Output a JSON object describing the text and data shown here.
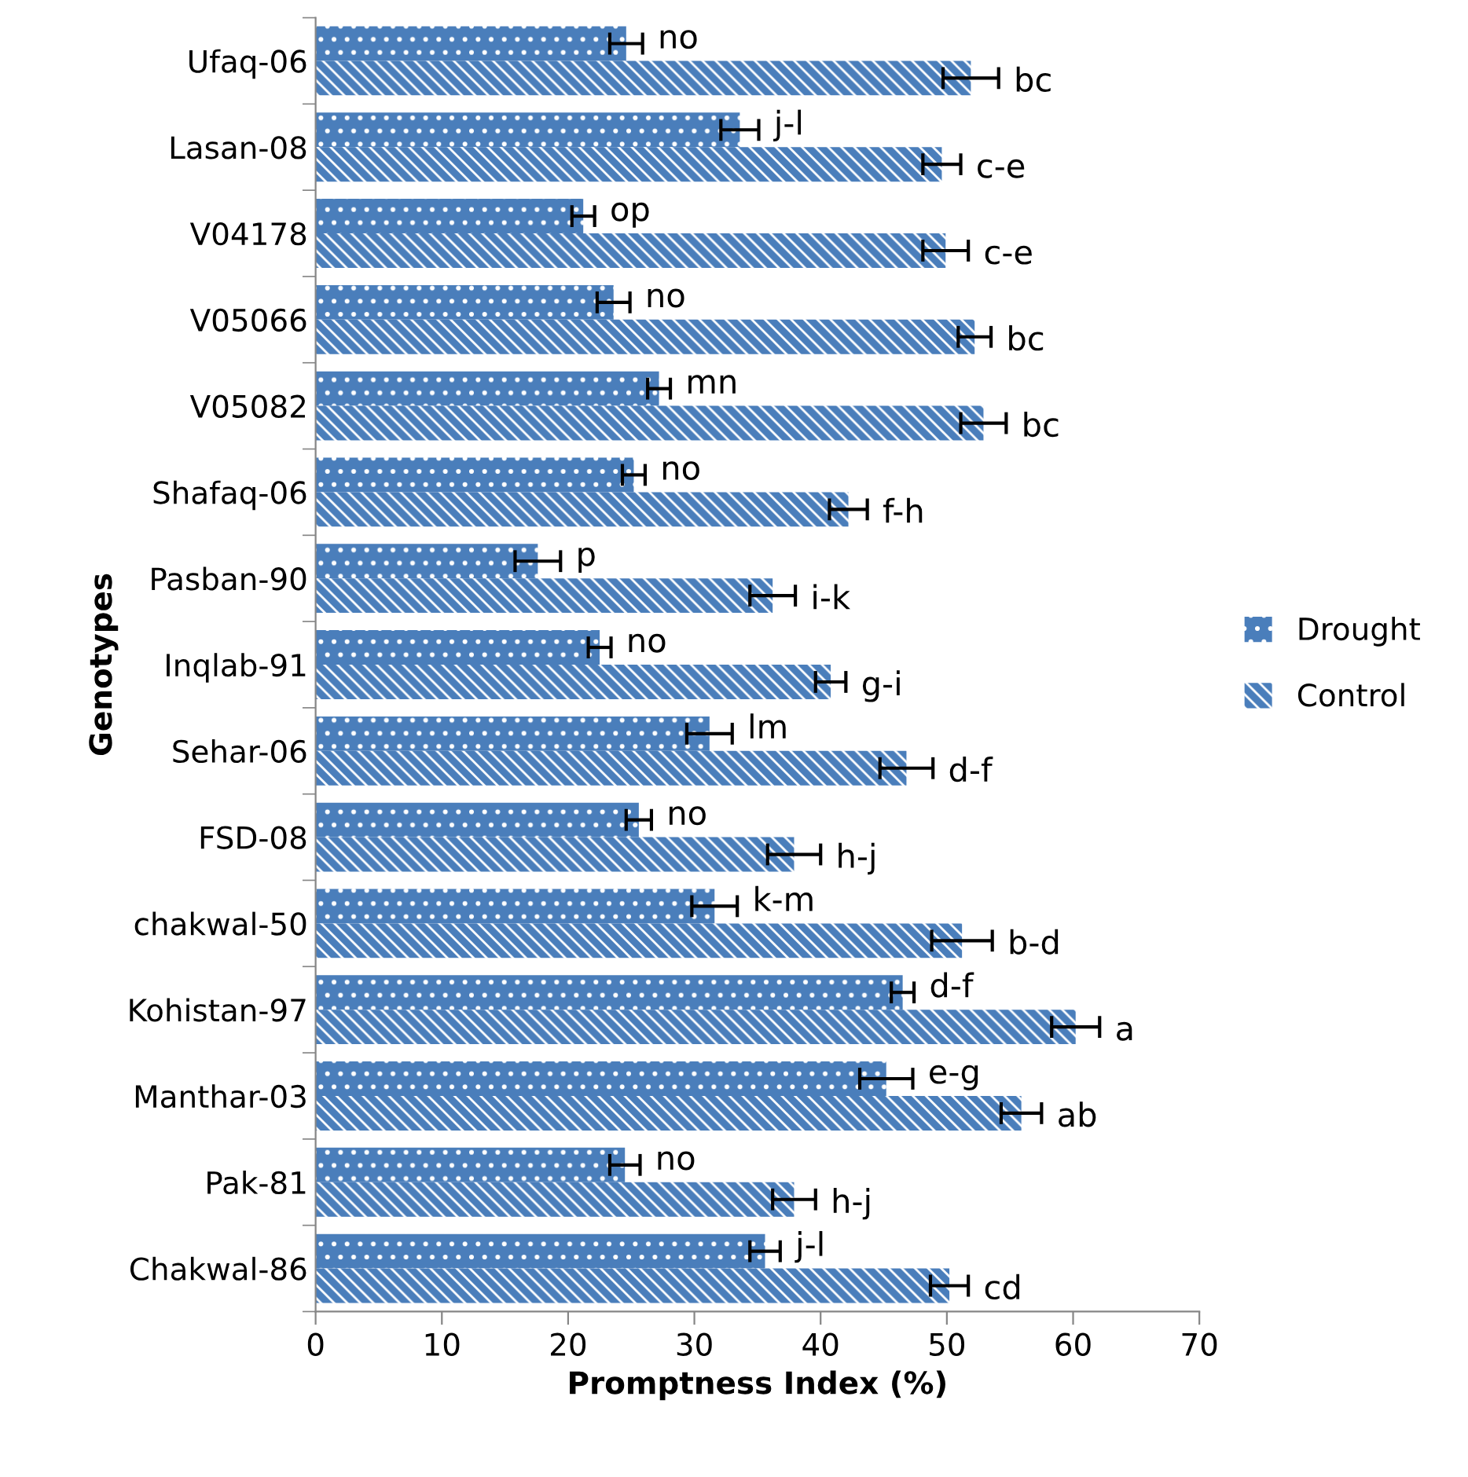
{
  "chart_data": {
    "type": "bar",
    "orientation": "horizontal",
    "xlabel": "Promptness Index (%)",
    "ylabel": "Genotypes",
    "categories": [
      "Ufaq-06",
      "Lasan-08",
      "V04178",
      "V05066",
      "V05082",
      "Shafaq-06",
      "Pasban-90",
      "Inqlab-91",
      "Sehar-06",
      "FSD-08",
      "chakwal-50",
      "Kohistan-97",
      "Manthar-03",
      "Pak-81",
      "Chakwal-86"
    ],
    "series": [
      {
        "name": "Drought",
        "color": "#4a7ebb",
        "values": [
          24.6,
          33.6,
          21.2,
          23.6,
          27.2,
          25.2,
          17.6,
          22.5,
          31.2,
          25.6,
          31.6,
          46.5,
          45.2,
          24.5,
          35.6
        ],
        "errors": [
          1.3,
          1.5,
          0.9,
          1.3,
          0.9,
          0.9,
          1.8,
          0.9,
          1.8,
          1.0,
          1.8,
          0.9,
          2.1,
          1.2,
          1.2
        ],
        "value_labels": [
          "no",
          "j-l",
          "op",
          "no",
          "mn",
          "no",
          "p",
          "no",
          "lm",
          "no",
          "k-m",
          "d-f",
          "e-g",
          "no",
          "j-l"
        ]
      },
      {
        "name": "Control",
        "color": "#4a7ebb",
        "values": [
          51.9,
          49.6,
          49.9,
          52.2,
          52.9,
          42.2,
          36.2,
          40.8,
          46.8,
          37.9,
          51.2,
          60.2,
          55.9,
          37.9,
          50.2
        ],
        "errors": [
          2.2,
          1.5,
          1.8,
          1.3,
          1.8,
          1.5,
          1.8,
          1.2,
          2.1,
          2.1,
          2.4,
          1.9,
          1.6,
          1.7,
          1.5
        ],
        "value_labels": [
          "bc",
          "c-e",
          "c-e",
          "bc",
          "bc",
          "f-h",
          "i-k",
          "g-i",
          "d-f",
          "h-j",
          "b-d",
          "a",
          "ab",
          "h-j",
          "cd"
        ]
      }
    ],
    "xlim": [
      0,
      70
    ],
    "xticks": [
      0,
      10,
      20,
      30,
      40,
      50,
      60,
      70
    ],
    "grid": false,
    "legend": "right"
  }
}
